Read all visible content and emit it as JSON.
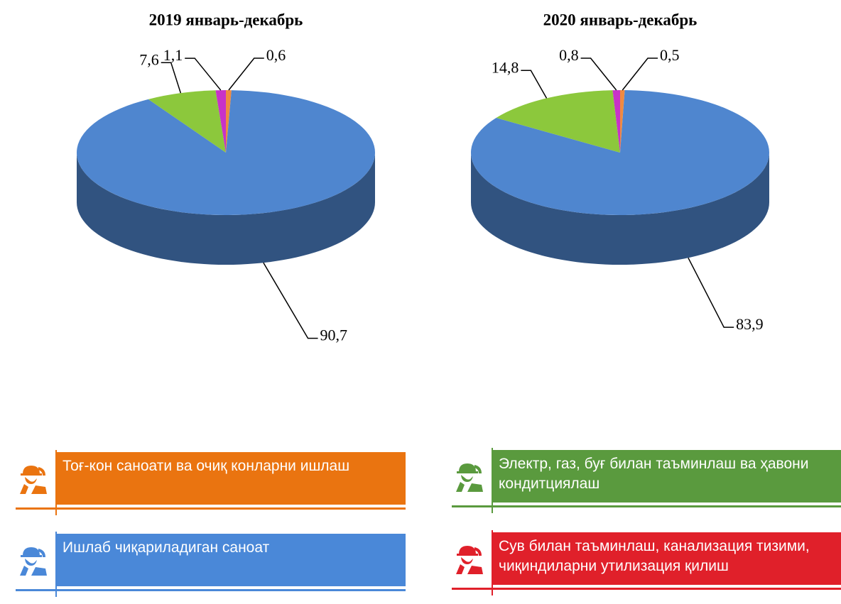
{
  "chart_data": [
    {
      "type": "pie",
      "title": "2019 январь-декабрь",
      "values": [
        0.6,
        90.7,
        7.6,
        1.1
      ],
      "value_labels": [
        "0,6",
        "90,7",
        "7,6",
        "1,1"
      ],
      "colors": [
        "#f08a40",
        "#4f86cf",
        "#8cc83c",
        "#c832c8"
      ]
    },
    {
      "type": "pie",
      "title": "2020 январь-декабрь",
      "values": [
        0.5,
        83.9,
        14.8,
        0.8
      ],
      "value_labels": [
        "0,5",
        "83,9",
        "14,8",
        "0,8"
      ],
      "colors": [
        "#f08a40",
        "#4f86cf",
        "#8cc83c",
        "#c832c8"
      ]
    }
  ],
  "legend": {
    "items": [
      {
        "label": "Тоғ-кон саноати ва очиқ конларни ишлаш",
        "color": "#ea7410"
      },
      {
        "label": "Ишлаб чиқариладиган саноат",
        "color": "#4a88d8"
      },
      {
        "label": "Электр, газ, буғ билан таъминлаш ва ҳавони кондитциялаш",
        "color": "#5a9a3e"
      },
      {
        "label": "Сув билан таъминлаш, канализация тизими, чиқиндиларни утилизация қилиш",
        "color": "#e0202a"
      }
    ]
  }
}
